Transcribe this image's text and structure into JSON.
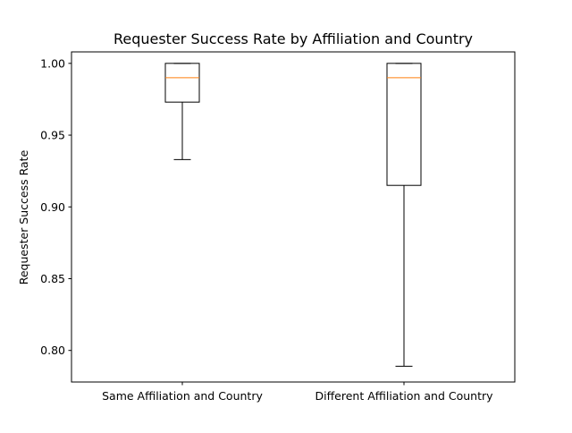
{
  "chart_data": {
    "type": "box",
    "title": "Requester Success Rate by Affiliation and Country",
    "xlabel": "",
    "ylabel": "Requester Success Rate",
    "ylim": [
      0.778,
      1.008
    ],
    "yticks": [
      "0.80",
      "0.85",
      "0.90",
      "0.95",
      "1.00"
    ],
    "ytick_values": [
      0.8,
      0.85,
      0.9,
      0.95,
      1.0
    ],
    "categories": [
      "Same Affiliation and Country",
      "Different Affiliation and Country"
    ],
    "boxes": [
      {
        "whisker_low": 0.933,
        "q1": 0.973,
        "median": 0.99,
        "q3": 1.0,
        "whisker_high": 1.0
      },
      {
        "whisker_low": 0.789,
        "q1": 0.915,
        "median": 0.99,
        "q3": 1.0,
        "whisker_high": 1.0
      }
    ],
    "grid": false,
    "colors": {
      "box": "#000000",
      "median": "#ff7f0e"
    }
  }
}
